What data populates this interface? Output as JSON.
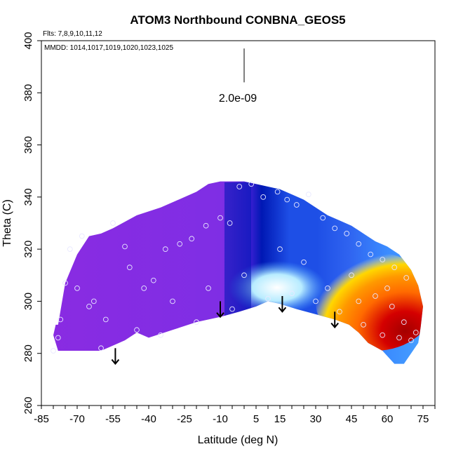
{
  "chart_data": {
    "type": "heatmap",
    "title": "ATOM3 Northbound CONBNA_GEOS5",
    "notes": {
      "flights": "Flts: 7,8,9,10,11,12",
      "dates": "MMDD: 1014,1017,1019,1020,1023,1025"
    },
    "xlabel": "Latitude (deg N)",
    "ylabel": "Theta (C)",
    "xlim": [
      -85,
      80
    ],
    "ylim": [
      260,
      400
    ],
    "x_ticks": [
      -85,
      -70,
      -55,
      -40,
      -25,
      -10,
      5,
      15,
      30,
      45,
      60,
      75
    ],
    "y_ticks": [
      260,
      280,
      300,
      320,
      340,
      360,
      380,
      400
    ],
    "scale_bar_label": "2.0e-09",
    "colors": {
      "purple": "#8a2be2",
      "deep_blue": "#0018b4",
      "blue": "#1e4fe6",
      "light_blue": "#b8ecff",
      "yellow": "#ffd700",
      "orange": "#ff9800",
      "red": "#d40000",
      "dark_red": "#a40000"
    },
    "color_field": [
      {
        "lat": -75,
        "theta": 300,
        "value": "purple"
      },
      {
        "lat": -20,
        "theta": 315,
        "value": "purple"
      },
      {
        "lat": -5,
        "theta": 320,
        "value": "deep_blue"
      },
      {
        "lat": 15,
        "theta": 330,
        "value": "blue"
      },
      {
        "lat": 20,
        "theta": 300,
        "value": "light_blue"
      },
      {
        "lat": 40,
        "theta": 315,
        "value": "blue"
      },
      {
        "lat": 50,
        "theta": 300,
        "value": "orange"
      },
      {
        "lat": 65,
        "theta": 285,
        "value": "dark_red"
      }
    ],
    "boundary_top": [
      [
        -78,
        291
      ],
      [
        -75,
        307
      ],
      [
        -70,
        318
      ],
      [
        -65,
        325
      ],
      [
        -60,
        326
      ],
      [
        -55,
        328
      ],
      [
        -45,
        333
      ],
      [
        -35,
        336
      ],
      [
        -25,
        340
      ],
      [
        -20,
        342
      ],
      [
        -15,
        345
      ],
      [
        -10,
        346
      ],
      [
        -5,
        346
      ],
      [
        0,
        346
      ],
      [
        5,
        345
      ],
      [
        10,
        344
      ],
      [
        15,
        343
      ],
      [
        20,
        341
      ],
      [
        25,
        339
      ],
      [
        30,
        336
      ],
      [
        35,
        333
      ],
      [
        40,
        331
      ],
      [
        45,
        329
      ],
      [
        50,
        326
      ],
      [
        55,
        323
      ],
      [
        60,
        321
      ],
      [
        65,
        318
      ],
      [
        70,
        312
      ],
      [
        73,
        306
      ],
      [
        75,
        298
      ],
      [
        74,
        290
      ],
      [
        73,
        284
      ]
    ],
    "boundary_bottom": [
      [
        73,
        284
      ],
      [
        70,
        280
      ],
      [
        67,
        276
      ],
      [
        63,
        276
      ],
      [
        58,
        281
      ],
      [
        52,
        284
      ],
      [
        48,
        288
      ],
      [
        44,
        291
      ],
      [
        38,
        293
      ],
      [
        30,
        295
      ],
      [
        22,
        297
      ],
      [
        15,
        299
      ],
      [
        10,
        300
      ],
      [
        5,
        298
      ],
      [
        -2,
        296
      ],
      [
        -10,
        294
      ],
      [
        -20,
        292
      ],
      [
        -30,
        289
      ],
      [
        -40,
        286
      ],
      [
        -45,
        288
      ],
      [
        -50,
        285
      ],
      [
        -55,
        283
      ],
      [
        -60,
        281
      ],
      [
        -70,
        281
      ],
      [
        -78,
        281
      ],
      [
        -80,
        287
      ],
      [
        -79,
        291
      ]
    ],
    "sample_points": [
      [
        -80,
        281
      ],
      [
        -78,
        286
      ],
      [
        -77,
        293
      ],
      [
        -75,
        307
      ],
      [
        -73,
        320
      ],
      [
        -68,
        325
      ],
      [
        -63,
        300
      ],
      [
        -60,
        282
      ],
      [
        -55,
        330
      ],
      [
        -50,
        321
      ],
      [
        -48,
        313
      ],
      [
        -42,
        305
      ],
      [
        -38,
        308
      ],
      [
        -33,
        320
      ],
      [
        -27,
        322
      ],
      [
        -22,
        324
      ],
      [
        -16,
        329
      ],
      [
        -10,
        332
      ],
      [
        -6,
        330
      ],
      [
        -2,
        344
      ],
      [
        3,
        345
      ],
      [
        8,
        340
      ],
      [
        14,
        342
      ],
      [
        18,
        339
      ],
      [
        22,
        337
      ],
      [
        27,
        341
      ],
      [
        33,
        332
      ],
      [
        38,
        328
      ],
      [
        43,
        326
      ],
      [
        48,
        322
      ],
      [
        53,
        318
      ],
      [
        58,
        316
      ],
      [
        63,
        313
      ],
      [
        68,
        309
      ],
      [
        -70,
        305
      ],
      [
        -65,
        298
      ],
      [
        -58,
        293
      ],
      [
        -45,
        289
      ],
      [
        -35,
        287
      ],
      [
        -20,
        292
      ],
      [
        -5,
        297
      ],
      [
        10,
        301
      ],
      [
        20,
        303
      ],
      [
        30,
        300
      ],
      [
        40,
        296
      ],
      [
        50,
        291
      ],
      [
        58,
        287
      ],
      [
        65,
        286
      ],
      [
        70,
        285
      ],
      [
        -30,
        300
      ],
      [
        0,
        310
      ],
      [
        25,
        315
      ],
      [
        45,
        310
      ],
      [
        55,
        302
      ],
      [
        62,
        298
      ],
      [
        67,
        292
      ],
      [
        72,
        288
      ],
      [
        -15,
        305
      ],
      [
        15,
        320
      ],
      [
        35,
        305
      ],
      [
        48,
        300
      ],
      [
        60,
        305
      ]
    ],
    "arrows": [
      {
        "lat": -54,
        "theta_top": 282,
        "theta_bottom": 276
      },
      {
        "lat": -10,
        "theta_top": 300,
        "theta_bottom": 294
      },
      {
        "lat": 16,
        "theta_top": 302,
        "theta_bottom": 296
      },
      {
        "lat": 38,
        "theta_top": 296,
        "theta_bottom": 290
      }
    ],
    "scale_bar": {
      "lat": 0,
      "theta_top": 397,
      "theta_bottom": 384
    }
  }
}
